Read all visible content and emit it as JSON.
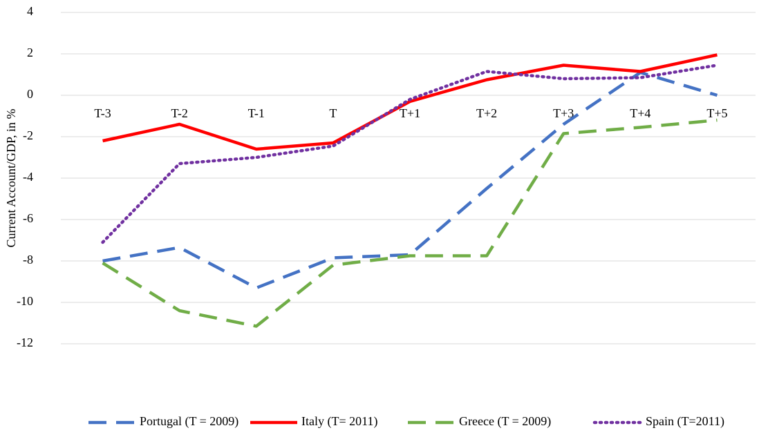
{
  "chart_data": {
    "type": "line",
    "y_label": "Current Account/GDP, in %",
    "categories": [
      "T-3",
      "T-2",
      "T-1",
      "T",
      "T+1",
      "T+2",
      "T+3",
      "T+4",
      "T+5"
    ],
    "series": [
      {
        "name": "Portugal (T = 2009)",
        "color": "#4472c4",
        "dash": "long-dash",
        "values": [
          -8.0,
          -7.35,
          -9.3,
          -7.85,
          -7.7,
          -4.5,
          -1.4,
          1.1,
          0.0
        ]
      },
      {
        "name": "Italy (T= 2011)",
        "color": "#ff0000",
        "dash": "solid",
        "values": [
          -2.2,
          -1.4,
          -2.6,
          -2.3,
          -0.3,
          0.75,
          1.45,
          1.15,
          1.95
        ]
      },
      {
        "name": "Greece (T = 2009)",
        "color": "#70ad47",
        "dash": "long-dash",
        "values": [
          -8.1,
          -10.4,
          -11.15,
          -8.2,
          -7.75,
          -7.75,
          -1.85,
          -1.55,
          -1.2
        ]
      },
      {
        "name": "Spain (T=2011)",
        "color": "#7030a0",
        "dash": "dot",
        "values": [
          -7.1,
          -3.3,
          -3.0,
          -2.45,
          -0.2,
          1.15,
          0.8,
          0.85,
          1.45
        ]
      }
    ],
    "ylim": [
      -14,
      4
    ],
    "yticks": [
      -12,
      -10,
      -8,
      -6,
      -4,
      -2,
      0,
      2,
      4
    ],
    "grid": true,
    "legend": "bottom"
  }
}
